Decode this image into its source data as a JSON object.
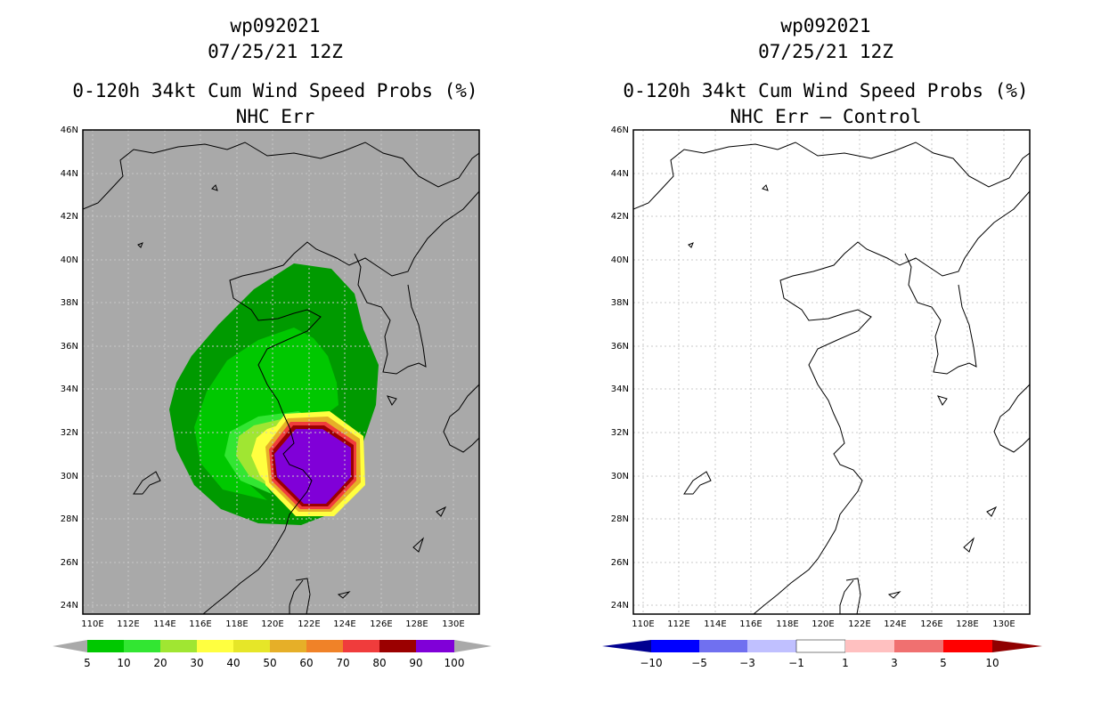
{
  "panels": [
    {
      "storm_id": "wp092021",
      "datetime": "07/25/21 12Z",
      "product": "0-120h 34kt Cum Wind Speed Probs (%)",
      "subtitle": "NHC Err",
      "colorbar": {
        "labels": [
          "5",
          "10",
          "20",
          "30",
          "40",
          "50",
          "60",
          "70",
          "80",
          "90",
          "100"
        ],
        "colors": [
          "#009a00",
          "#00c800",
          "#32e632",
          "#a0e632",
          "#ffff40",
          "#e6e628",
          "#e6af28",
          "#f08228",
          "#f03c3c",
          "#9b0000",
          "#8000d8"
        ]
      }
    },
    {
      "storm_id": "wp092021",
      "datetime": "07/25/21 12Z",
      "product": "0-120h 34kt Cum Wind Speed Probs (%)",
      "subtitle": "NHC Err – Control",
      "colorbar": {
        "labels": [
          "−10",
          "−5",
          "−3",
          "−1",
          "1",
          "3",
          "5",
          "10"
        ],
        "colors": [
          "#000090",
          "#0000ff",
          "#7070f0",
          "#c0c0ff",
          "#ffffff",
          "#ffc0c0",
          "#f07070",
          "#ff0000",
          "#900000"
        ]
      }
    }
  ],
  "map": {
    "lat_ticks": [
      "24N",
      "26N",
      "28N",
      "30N",
      "32N",
      "34N",
      "36N",
      "38N",
      "40N",
      "42N",
      "44N",
      "46N"
    ],
    "lon_ticks": [
      "110E",
      "112E",
      "114E",
      "116E",
      "118E",
      "120E",
      "122E",
      "124E",
      "126E",
      "128E",
      "130E"
    ]
  }
}
